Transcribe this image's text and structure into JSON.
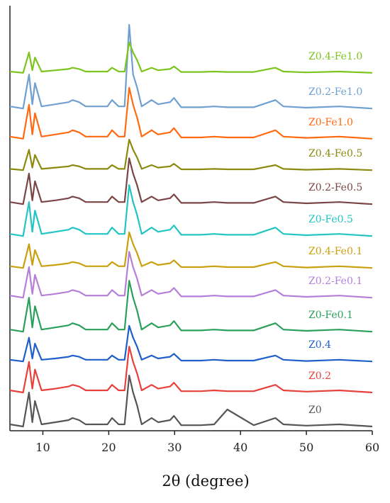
{
  "chart_data": {
    "type": "line",
    "xlabel": "2θ (degree)",
    "xlim": [
      5,
      60
    ],
    "xticks": [
      10,
      20,
      30,
      40,
      50,
      60
    ],
    "ylim": [
      0,
      100
    ],
    "x": [
      5,
      7,
      7.9,
      8.4,
      8.8,
      9.8,
      11.9,
      13.9,
      14.5,
      15.5,
      16.5,
      17.8,
      19.8,
      20.5,
      21.5,
      22.4,
      23.1,
      23.7,
      24.3,
      25,
      26.5,
      27.5,
      29.3,
      29.9,
      31,
      34,
      36,
      38,
      42,
      45.3,
      46.5,
      50,
      55,
      60
    ],
    "series": [
      {
        "name": "Z0",
        "color": "#555555",
        "values": [
          1.5,
          1,
          9,
          2,
          7,
          1.5,
          2,
          2.5,
          3,
          2.5,
          1.5,
          1.5,
          1.5,
          3,
          1.5,
          1.5,
          13,
          9,
          6,
          1.5,
          3,
          2,
          2.5,
          3.5,
          1.3,
          1.3,
          1.5,
          5,
          1.3,
          3,
          1.5,
          1.2,
          1.5,
          1
        ]
      },
      {
        "name": "Z0.2",
        "color": "#e8413c",
        "values": [
          9.5,
          9,
          16.2,
          9.9,
          14.4,
          9.5,
          9.9,
          10.4,
          10.8,
          10.4,
          9.5,
          9.5,
          9.5,
          10.8,
          9.5,
          9.5,
          19.8,
          16.2,
          13.5,
          9.5,
          10.8,
          9.9,
          10.4,
          11.3,
          9.3,
          9.3,
          9.5,
          9.3,
          9.3,
          10.8,
          9.5,
          9.2,
          9.5,
          9
        ]
      },
      {
        "name": "Z0.4",
        "color": "#1f5fcc",
        "values": [
          16.7,
          16.3,
          21.9,
          17,
          20.5,
          16.7,
          17,
          17.4,
          17.7,
          17.4,
          16.7,
          16.7,
          16.7,
          17.7,
          16.7,
          16.7,
          24.7,
          21.9,
          19.8,
          16.7,
          17.7,
          17,
          17.4,
          18.1,
          16.5,
          16.5,
          16.7,
          16.5,
          16.5,
          17.7,
          16.7,
          16.4,
          16.7,
          16.3
        ]
      },
      {
        "name": "Z0-Fe0.1",
        "color": "#2aa05a",
        "values": [
          23.8,
          23.3,
          31.3,
          24.3,
          29.3,
          23.8,
          24.3,
          24.8,
          25.3,
          24.8,
          23.8,
          23.8,
          23.8,
          25.3,
          23.8,
          23.8,
          35.3,
          31.3,
          28.3,
          23.8,
          25.3,
          24.3,
          24.8,
          25.8,
          23.6,
          23.6,
          23.8,
          23.6,
          23.6,
          25.3,
          23.8,
          23.5,
          23.8,
          23.3
        ]
      },
      {
        "name": "Z0.2-Fe0.1",
        "color": "#b57fd8",
        "values": [
          31.8,
          31.3,
          38.5,
          32.2,
          36.7,
          31.8,
          32.2,
          32.7,
          33.1,
          32.7,
          31.8,
          31.8,
          31.8,
          33.1,
          31.8,
          31.8,
          42.1,
          38.5,
          35.8,
          31.8,
          33.1,
          32.2,
          32.7,
          33.6,
          31.6,
          31.6,
          31.8,
          31.6,
          31.6,
          33.1,
          31.8,
          31.5,
          31.8,
          31.3
        ]
      },
      {
        "name": "Z0.4-Fe0.1",
        "color": "#c9a010",
        "values": [
          38.7,
          38.3,
          43.9,
          39,
          42.5,
          38.7,
          39,
          39.4,
          39.7,
          39.4,
          38.7,
          38.7,
          38.7,
          39.7,
          38.7,
          38.7,
          46.7,
          43.9,
          41.8,
          38.7,
          39.7,
          39,
          39.4,
          40.1,
          38.5,
          38.5,
          38.7,
          38.5,
          38.5,
          39.7,
          38.7,
          38.4,
          38.7,
          38.3
        ]
      },
      {
        "name": "Z0-Fe0.5",
        "color": "#22c4c4",
        "values": [
          46.3,
          45.8,
          53.8,
          46.8,
          51.8,
          46.3,
          46.8,
          47.3,
          47.8,
          47.3,
          46.3,
          46.3,
          46.3,
          47.8,
          46.3,
          46.3,
          57.8,
          53.8,
          50.8,
          46.3,
          47.8,
          46.8,
          47.3,
          48.3,
          46.1,
          46.1,
          46.3,
          46.1,
          46.1,
          47.8,
          46.3,
          46,
          46.3,
          45.8
        ]
      },
      {
        "name": "Z0.2-Fe0.5",
        "color": "#7a4545",
        "values": [
          53.8,
          53.3,
          60.5,
          54.2,
          58.7,
          53.8,
          54.2,
          54.7,
          55.1,
          54.7,
          53.8,
          53.8,
          53.8,
          55.1,
          53.8,
          53.8,
          64.1,
          60.5,
          57.8,
          53.8,
          55.1,
          54.2,
          54.7,
          55.6,
          53.6,
          53.6,
          53.8,
          53.6,
          53.6,
          55.1,
          53.8,
          53.5,
          53.8,
          53.3
        ]
      },
      {
        "name": "Z0.4-Fe0.5",
        "color": "#8a8a10",
        "values": [
          61.6,
          61.3,
          66.1,
          61.9,
          64.9,
          61.6,
          61.9,
          62.2,
          62.5,
          62.2,
          61.6,
          61.6,
          61.6,
          62.5,
          61.6,
          61.6,
          68.5,
          66.1,
          64.3,
          61.6,
          62.5,
          61.9,
          62.2,
          62.8,
          61.5,
          61.5,
          61.6,
          61.5,
          61.5,
          62.5,
          61.6,
          61.4,
          61.6,
          61.3
        ]
      },
      {
        "name": "Z0-Fe1.0",
        "color": "#ff6a10",
        "values": [
          69.2,
          68.7,
          76.7,
          69.7,
          74.7,
          69.2,
          69.7,
          70.2,
          70.7,
          70.2,
          69.2,
          69.2,
          69.2,
          70.7,
          69.2,
          69.2,
          80.7,
          76.7,
          73.7,
          69.2,
          70.7,
          69.7,
          70.2,
          71.2,
          69,
          69,
          69.2,
          69,
          69,
          70.7,
          69.2,
          68.9,
          69.2,
          68.7
        ]
      },
      {
        "name": "Z0.2-Fe1.0",
        "color": "#6fa0d0",
        "values": [
          76.3,
          75.8,
          83.8,
          76.8,
          81.8,
          76.3,
          76.8,
          77.3,
          77.8,
          77.3,
          76.3,
          76.3,
          76.3,
          77.8,
          76.3,
          76.3,
          95.5,
          83.8,
          80.8,
          76.3,
          77.8,
          76.8,
          77.3,
          78.3,
          76.1,
          76.1,
          76.3,
          76.1,
          76.1,
          77.8,
          76.3,
          76,
          76.3,
          75.8
        ]
      },
      {
        "name": "Z0.4-Fe1.0",
        "color": "#7cc41e",
        "values": [
          84.5,
          84.2,
          89,
          84.8,
          87.8,
          84.5,
          84.8,
          85.1,
          85.4,
          85.1,
          84.5,
          84.5,
          84.5,
          85.4,
          84.5,
          84.5,
          91.4,
          89,
          87.2,
          84.5,
          85.4,
          84.8,
          85.1,
          85.7,
          84.4,
          84.4,
          84.5,
          84.4,
          84.4,
          85.4,
          84.5,
          84.3,
          84.5,
          84.2
        ]
      }
    ]
  }
}
